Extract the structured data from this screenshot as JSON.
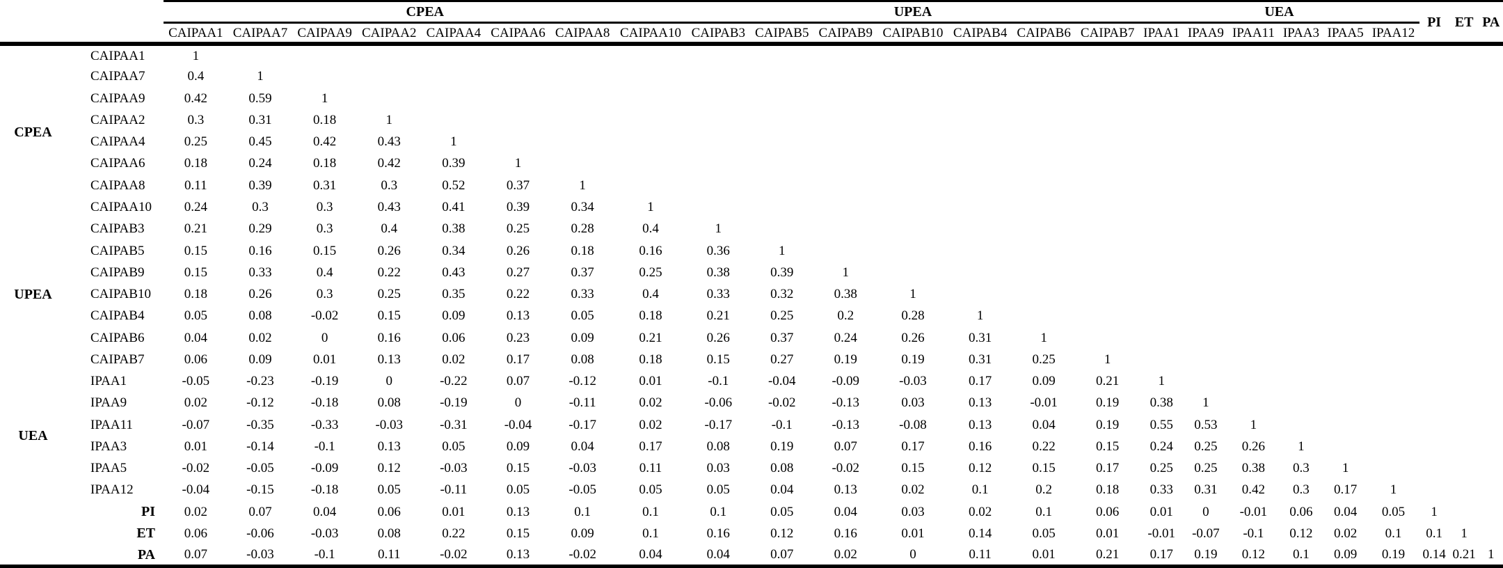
{
  "page": {
    "background_color": "#ffffff",
    "text_color": "#000000",
    "rule_color": "#000000"
  },
  "table": {
    "column_groups": [
      {
        "label": "CPEA",
        "columns": [
          "CAIPAA1",
          "CAIPAA7",
          "CAIPAA9",
          "CAIPAA2",
          "CAIPAA4",
          "CAIPAA6",
          "CAIPAA8",
          "CAIPAA10"
        ]
      },
      {
        "label": "UPEA",
        "columns": [
          "CAIPAB3",
          "CAIPAB5",
          "CAIPAB9",
          "CAIPAB10",
          "CAIPAB4",
          "CAIPAB6",
          "CAIPAB7"
        ]
      },
      {
        "label": "UEA",
        "columns": [
          "IPAA1",
          "IPAA9",
          "IPAA11",
          "IPAA3",
          "IPAA5",
          "IPAA12"
        ]
      }
    ],
    "tail_columns": [
      "PI",
      "ET",
      "PA"
    ],
    "rows": [
      {
        "group": "CPEA",
        "label": "CAIPAA1",
        "values": [
          "1"
        ]
      },
      {
        "group": "CPEA",
        "label": "CAIPAA7",
        "values": [
          "0.4",
          "1"
        ]
      },
      {
        "group": "CPEA",
        "label": "CAIPAA9",
        "values": [
          "0.42",
          "0.59",
          "1"
        ]
      },
      {
        "group": "CPEA",
        "label": "CAIPAA2",
        "values": [
          "0.3",
          "0.31",
          "0.18",
          "1"
        ]
      },
      {
        "group": "CPEA",
        "label": "CAIPAA4",
        "values": [
          "0.25",
          "0.45",
          "0.42",
          "0.43",
          "1"
        ]
      },
      {
        "group": "CPEA",
        "label": "CAIPAA6",
        "values": [
          "0.18",
          "0.24",
          "0.18",
          "0.42",
          "0.39",
          "1"
        ]
      },
      {
        "group": "CPEA",
        "label": "CAIPAA8",
        "values": [
          "0.11",
          "0.39",
          "0.31",
          "0.3",
          "0.52",
          "0.37",
          "1"
        ]
      },
      {
        "group": "CPEA",
        "label": "CAIPAA10",
        "values": [
          "0.24",
          "0.3",
          "0.3",
          "0.43",
          "0.41",
          "0.39",
          "0.34",
          "1"
        ]
      },
      {
        "group": "UPEA",
        "label": "CAIPAB3",
        "values": [
          "0.21",
          "0.29",
          "0.3",
          "0.4",
          "0.38",
          "0.25",
          "0.28",
          "0.4",
          "1"
        ]
      },
      {
        "group": "UPEA",
        "label": "CAIPAB5",
        "values": [
          "0.15",
          "0.16",
          "0.15",
          "0.26",
          "0.34",
          "0.26",
          "0.18",
          "0.16",
          "0.36",
          "1"
        ]
      },
      {
        "group": "UPEA",
        "label": "CAIPAB9",
        "values": [
          "0.15",
          "0.33",
          "0.4",
          "0.22",
          "0.43",
          "0.27",
          "0.37",
          "0.25",
          "0.38",
          "0.39",
          "1"
        ]
      },
      {
        "group": "UPEA",
        "label": "CAIPAB10",
        "values": [
          "0.18",
          "0.26",
          "0.3",
          "0.25",
          "0.35",
          "0.22",
          "0.33",
          "0.4",
          "0.33",
          "0.32",
          "0.38",
          "1"
        ]
      },
      {
        "group": "UPEA",
        "label": "CAIPAB4",
        "values": [
          "0.05",
          "0.08",
          "-0.02",
          "0.15",
          "0.09",
          "0.13",
          "0.05",
          "0.18",
          "0.21",
          "0.25",
          "0.2",
          "0.28",
          "1"
        ]
      },
      {
        "group": "UPEA",
        "label": "CAIPAB6",
        "values": [
          "0.04",
          "0.02",
          "0",
          "0.16",
          "0.06",
          "0.23",
          "0.09",
          "0.21",
          "0.26",
          "0.37",
          "0.24",
          "0.26",
          "0.31",
          "1"
        ]
      },
      {
        "group": "UPEA",
        "label": "CAIPAB7",
        "values": [
          "0.06",
          "0.09",
          "0.01",
          "0.13",
          "0.02",
          "0.17",
          "0.08",
          "0.18",
          "0.15",
          "0.27",
          "0.19",
          "0.19",
          "0.31",
          "0.25",
          "1"
        ]
      },
      {
        "group": "UEA",
        "label": "IPAA1",
        "values": [
          "-0.05",
          "-0.23",
          "-0.19",
          "0",
          "-0.22",
          "0.07",
          "-0.12",
          "0.01",
          "-0.1",
          "-0.04",
          "-0.09",
          "-0.03",
          "0.17",
          "0.09",
          "0.21",
          "1"
        ]
      },
      {
        "group": "UEA",
        "label": "IPAA9",
        "values": [
          "0.02",
          "-0.12",
          "-0.18",
          "0.08",
          "-0.19",
          "0",
          "-0.11",
          "0.02",
          "-0.06",
          "-0.02",
          "-0.13",
          "0.03",
          "0.13",
          "-0.01",
          "0.19",
          "0.38",
          "1"
        ]
      },
      {
        "group": "UEA",
        "label": "IPAA11",
        "values": [
          "-0.07",
          "-0.35",
          "-0.33",
          "-0.03",
          "-0.31",
          "-0.04",
          "-0.17",
          "0.02",
          "-0.17",
          "-0.1",
          "-0.13",
          "-0.08",
          "0.13",
          "0.04",
          "0.19",
          "0.55",
          "0.53",
          "1"
        ]
      },
      {
        "group": "UEA",
        "label": "IPAA3",
        "values": [
          "0.01",
          "-0.14",
          "-0.1",
          "0.13",
          "0.05",
          "0.09",
          "0.04",
          "0.17",
          "0.08",
          "0.19",
          "0.07",
          "0.17",
          "0.16",
          "0.22",
          "0.15",
          "0.24",
          "0.25",
          "0.26",
          "1"
        ]
      },
      {
        "group": "UEA",
        "label": "IPAA5",
        "values": [
          "-0.02",
          "-0.05",
          "-0.09",
          "0.12",
          "-0.03",
          "0.15",
          "-0.03",
          "0.11",
          "0.03",
          "0.08",
          "-0.02",
          "0.15",
          "0.12",
          "0.15",
          "0.17",
          "0.25",
          "0.25",
          "0.38",
          "0.3",
          "1"
        ]
      },
      {
        "group": "UEA",
        "label": "IPAA12",
        "values": [
          "-0.04",
          "-0.15",
          "-0.18",
          "0.05",
          "-0.11",
          "0.05",
          "-0.05",
          "0.05",
          "0.05",
          "0.04",
          "0.13",
          "0.02",
          "0.1",
          "0.2",
          "0.18",
          "0.33",
          "0.31",
          "0.42",
          "0.3",
          "0.17",
          "1"
        ]
      },
      {
        "group": "",
        "label": "PI",
        "values": [
          "0.02",
          "0.07",
          "0.04",
          "0.06",
          "0.01",
          "0.13",
          "0.1",
          "0.1",
          "0.1",
          "0.05",
          "0.04",
          "0.03",
          "0.02",
          "0.1",
          "0.06",
          "0.01",
          "0",
          "-0.01",
          "0.06",
          "0.04",
          "0.05",
          "1"
        ]
      },
      {
        "group": "",
        "label": "ET",
        "values": [
          "0.06",
          "-0.06",
          "-0.03",
          "0.08",
          "0.22",
          "0.15",
          "0.09",
          "0.1",
          "0.16",
          "0.12",
          "0.16",
          "0.01",
          "0.14",
          "0.05",
          "0.01",
          "-0.01",
          "-0.07",
          "-0.1",
          "0.12",
          "0.02",
          "0.1",
          "0.1",
          "1"
        ]
      },
      {
        "group": "",
        "label": "PA",
        "values": [
          "0.07",
          "-0.03",
          "-0.1",
          "0.11",
          "-0.02",
          "0.13",
          "-0.02",
          "0.04",
          "0.04",
          "0.07",
          "0.02",
          "0",
          "0.11",
          "0.01",
          "0.21",
          "0.17",
          "0.19",
          "0.12",
          "0.1",
          "0.09",
          "0.19",
          "0.14",
          "0.21",
          "1"
        ]
      }
    ]
  },
  "chart_data": {
    "type": "table",
    "title": "",
    "description_visible": false
  }
}
